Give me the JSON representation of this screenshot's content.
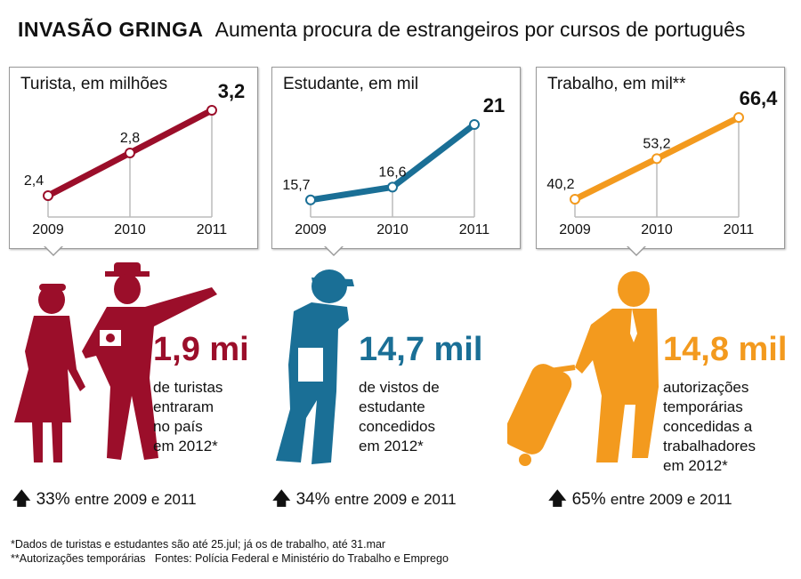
{
  "header": {
    "title": "INVASÃO GRINGA",
    "subtitle": "Aumenta procura de estrangeiros por cursos de português"
  },
  "colors": {
    "turista": "#9b0e2a",
    "estudante": "#1a6f96",
    "trabalho": "#f39a1e"
  },
  "chart_data": [
    {
      "type": "line",
      "title": "Turista, em milhões",
      "x": [
        "2009",
        "2010",
        "2011"
      ],
      "values": [
        2.4,
        2.8,
        3.2
      ],
      "labels": [
        "2,4",
        "2,8",
        "3,2"
      ],
      "ylim": [
        2.2,
        3.2
      ],
      "color": "#9b0e2a",
      "grid": false
    },
    {
      "type": "line",
      "title": "Estudante, em mil",
      "x": [
        "2009",
        "2010",
        "2011"
      ],
      "values": [
        15.7,
        16.6,
        21
      ],
      "labels": [
        "15,7",
        "16,6",
        "21"
      ],
      "ylim": [
        14.5,
        22
      ],
      "color": "#1a6f96",
      "grid": false
    },
    {
      "type": "line",
      "title": "Trabalho, em mil**",
      "x": [
        "2009",
        "2010",
        "2011"
      ],
      "values": [
        40.2,
        53.2,
        66.4
      ],
      "labels": [
        "40,2",
        "53,2",
        "66,4"
      ],
      "ylim": [
        34.5,
        68.7
      ],
      "color": "#f39a1e",
      "grid": false
    }
  ],
  "panels": [
    {
      "big": "1,9 mi",
      "desc": [
        "de turistas",
        "entraram",
        "no país",
        "em 2012*"
      ],
      "growth_pct": "33%",
      "growth_text": "entre 2009 e 2011",
      "icon": "tourists-silhouette-icon"
    },
    {
      "big": "14,7 mil",
      "desc": [
        "de vistos de",
        "estudante",
        "concedidos",
        "em 2012*"
      ],
      "growth_pct": "34%",
      "growth_text": "entre 2009 e 2011",
      "icon": "student-silhouette-icon"
    },
    {
      "big": "14,8 mil",
      "desc": [
        "autorizações",
        "temporárias",
        "concedidas a",
        "trabalhadores",
        "em 2012*"
      ],
      "growth_pct": "65%",
      "growth_text": "entre 2009 e 2011",
      "icon": "worker-silhouette-icon"
    }
  ],
  "arrow_icon": "arrow-up-icon",
  "footnotes": [
    "*Dados de turistas e estudantes são até 25.jul; já os de trabalho, até 31.mar",
    "**Autorizações temporárias   Fontes: Polícia Federal e Ministério do Trabalho e Emprego"
  ]
}
